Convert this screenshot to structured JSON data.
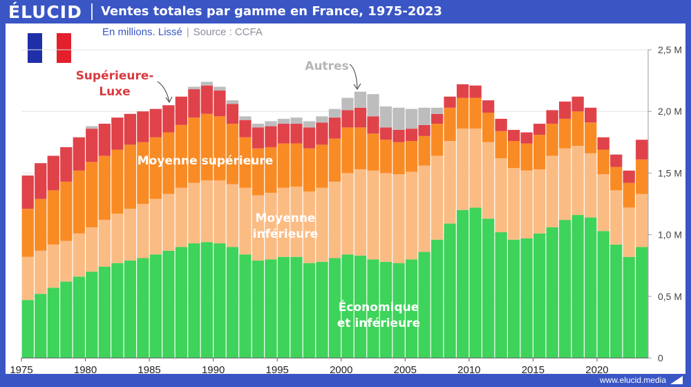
{
  "brand": {
    "logo_text": "ÉLUCID",
    "footer_url": "www.elucid.media"
  },
  "header": {
    "title": "Ventes totales par gamme en France, 1975-2023"
  },
  "subheader": {
    "unit": "En millions. Lissé",
    "separator": "|",
    "source": "Source : CCFA"
  },
  "icons": {
    "flag": "france-flag-icon",
    "footer_mark": "elucid-mark-icon"
  },
  "colors": {
    "header_bg": "#3a56c5",
    "economique": "#3ed35a",
    "moyenne_inferieure": "#fbbc84",
    "moyenne_superieure": "#f98b25",
    "superieure_luxe": "#e0424a",
    "autres": "#bdbdbd"
  },
  "chart_data": {
    "type": "bar",
    "stacked": true,
    "title": "Ventes totales par gamme en France, 1975-2023",
    "subtitle": "En millions. Lissé",
    "x": [
      1975,
      1976,
      1977,
      1978,
      1979,
      1980,
      1981,
      1982,
      1983,
      1984,
      1985,
      1986,
      1987,
      1988,
      1989,
      1990,
      1991,
      1992,
      1993,
      1994,
      1995,
      1996,
      1997,
      1998,
      1999,
      2000,
      2001,
      2002,
      2003,
      2004,
      2005,
      2006,
      2007,
      2008,
      2009,
      2010,
      2011,
      2012,
      2013,
      2014,
      2015,
      2016,
      2017,
      2018,
      2019,
      2020,
      2021,
      2022,
      2023
    ],
    "x_ticks": [
      1975,
      1980,
      1985,
      1990,
      1995,
      2000,
      2005,
      2010,
      2015,
      2020
    ],
    "y_ticks": [
      0,
      0.5,
      1.0,
      1.5,
      2.0,
      2.5
    ],
    "y_tick_labels": [
      "0",
      "0,5 M",
      "1,0 M",
      "1,5 M",
      "2,0 M",
      "2,5 M"
    ],
    "ylim": [
      0,
      2.5
    ],
    "grid": true,
    "series": [
      {
        "name": "Économique et inférieure",
        "color": "#3ed35a",
        "values": [
          0.47,
          0.52,
          0.57,
          0.62,
          0.66,
          0.7,
          0.74,
          0.77,
          0.79,
          0.81,
          0.84,
          0.87,
          0.9,
          0.93,
          0.94,
          0.93,
          0.9,
          0.84,
          0.79,
          0.8,
          0.82,
          0.82,
          0.77,
          0.78,
          0.81,
          0.84,
          0.83,
          0.8,
          0.78,
          0.77,
          0.8,
          0.86,
          0.96,
          1.09,
          1.2,
          1.22,
          1.13,
          1.02,
          0.96,
          0.97,
          1.01,
          1.06,
          1.12,
          1.16,
          1.14,
          1.03,
          0.92,
          0.82,
          0.9
        ]
      },
      {
        "name": "Moyenne inférieure",
        "color": "#fbbc84",
        "values": [
          0.35,
          0.35,
          0.35,
          0.33,
          0.35,
          0.36,
          0.38,
          0.4,
          0.42,
          0.44,
          0.45,
          0.46,
          0.48,
          0.49,
          0.5,
          0.51,
          0.51,
          0.54,
          0.53,
          0.54,
          0.56,
          0.57,
          0.58,
          0.6,
          0.62,
          0.66,
          0.7,
          0.72,
          0.72,
          0.72,
          0.71,
          0.7,
          0.68,
          0.67,
          0.66,
          0.64,
          0.62,
          0.6,
          0.58,
          0.55,
          0.52,
          0.58,
          0.58,
          0.56,
          0.52,
          0.46,
          0.44,
          0.4,
          0.43
        ]
      },
      {
        "name": "Moyenne supérieure",
        "color": "#f98b25",
        "values": [
          0.39,
          0.42,
          0.44,
          0.48,
          0.51,
          0.53,
          0.52,
          0.52,
          0.52,
          0.5,
          0.5,
          0.5,
          0.51,
          0.53,
          0.54,
          0.52,
          0.49,
          0.41,
          0.38,
          0.37,
          0.36,
          0.35,
          0.35,
          0.35,
          0.35,
          0.37,
          0.34,
          0.3,
          0.27,
          0.26,
          0.25,
          0.24,
          0.26,
          0.27,
          0.25,
          0.25,
          0.24,
          0.22,
          0.22,
          0.22,
          0.28,
          0.26,
          0.24,
          0.28,
          0.25,
          0.2,
          0.19,
          0.2,
          0.28
        ]
      },
      {
        "name": "Supérieure-Luxe",
        "color": "#e0424a",
        "values": [
          0.27,
          0.29,
          0.28,
          0.28,
          0.27,
          0.27,
          0.26,
          0.26,
          0.25,
          0.25,
          0.23,
          0.22,
          0.23,
          0.23,
          0.23,
          0.21,
          0.16,
          0.14,
          0.17,
          0.17,
          0.16,
          0.16,
          0.17,
          0.18,
          0.17,
          0.14,
          0.16,
          0.14,
          0.1,
          0.1,
          0.1,
          0.09,
          0.08,
          0.09,
          0.11,
          0.1,
          0.1,
          0.1,
          0.09,
          0.09,
          0.09,
          0.11,
          0.14,
          0.12,
          0.12,
          0.1,
          0.1,
          0.1,
          0.16
        ]
      },
      {
        "name": "Autres",
        "color": "#bdbdbd",
        "values": [
          0,
          0,
          0,
          0,
          0,
          0.02,
          0,
          0,
          0,
          0,
          0,
          0,
          0,
          0.02,
          0.03,
          0.03,
          0.03,
          0.03,
          0.03,
          0.04,
          0.04,
          0.05,
          0.05,
          0.05,
          0.07,
          0.1,
          0.13,
          0.18,
          0.17,
          0.18,
          0.16,
          0.14,
          0.05,
          0,
          0,
          0,
          0,
          0,
          0,
          0,
          0,
          0,
          0,
          0,
          0,
          0,
          0,
          0,
          0
        ]
      }
    ],
    "annotations": [
      {
        "text": "Autres"
      },
      {
        "text": "Supérieure-\nLuxe"
      },
      {
        "text": "Moyenne supérieure"
      },
      {
        "text": "Moyenne\ninférieure"
      },
      {
        "text": "Économique\net inférieure"
      }
    ]
  }
}
